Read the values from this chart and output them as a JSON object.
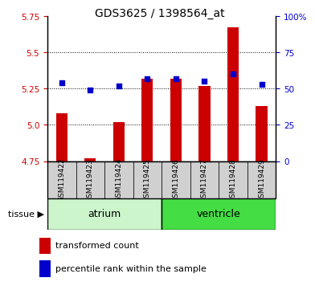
{
  "title": "GDS3625 / 1398564_at",
  "samples": [
    "GSM119422",
    "GSM119423",
    "GSM119424",
    "GSM119425",
    "GSM119426",
    "GSM119427",
    "GSM119428",
    "GSM119429"
  ],
  "transformed_count": [
    5.08,
    4.77,
    5.02,
    5.32,
    5.32,
    5.27,
    5.67,
    5.13
  ],
  "percentile_rank": [
    54,
    49,
    52,
    57,
    57,
    55,
    60,
    53
  ],
  "ylim_left": [
    4.75,
    5.75
  ],
  "ylim_right": [
    0,
    100
  ],
  "yticks_left": [
    4.75,
    5.0,
    5.25,
    5.5,
    5.75
  ],
  "yticks_right": [
    0,
    25,
    50,
    75,
    100
  ],
  "ytick_labels_right": [
    "0",
    "25",
    "50",
    "75",
    "100%"
  ],
  "bar_color": "#cc0000",
  "dot_color": "#0000cc",
  "bar_bottom": 4.75,
  "atrium_color_light": "#ccf5cc",
  "atrium_color": "#ccf5cc",
  "ventricle_color": "#44dd44",
  "tissue_box_color": "#d0d0d0",
  "tick_label_color_left": "#cc0000",
  "tick_label_color_right": "#0000cc",
  "grid_yticks": [
    5.0,
    5.25,
    5.5
  ],
  "title_fontsize": 10,
  "tick_fontsize": 7.5,
  "sample_fontsize": 6.5,
  "legend_fontsize": 8
}
